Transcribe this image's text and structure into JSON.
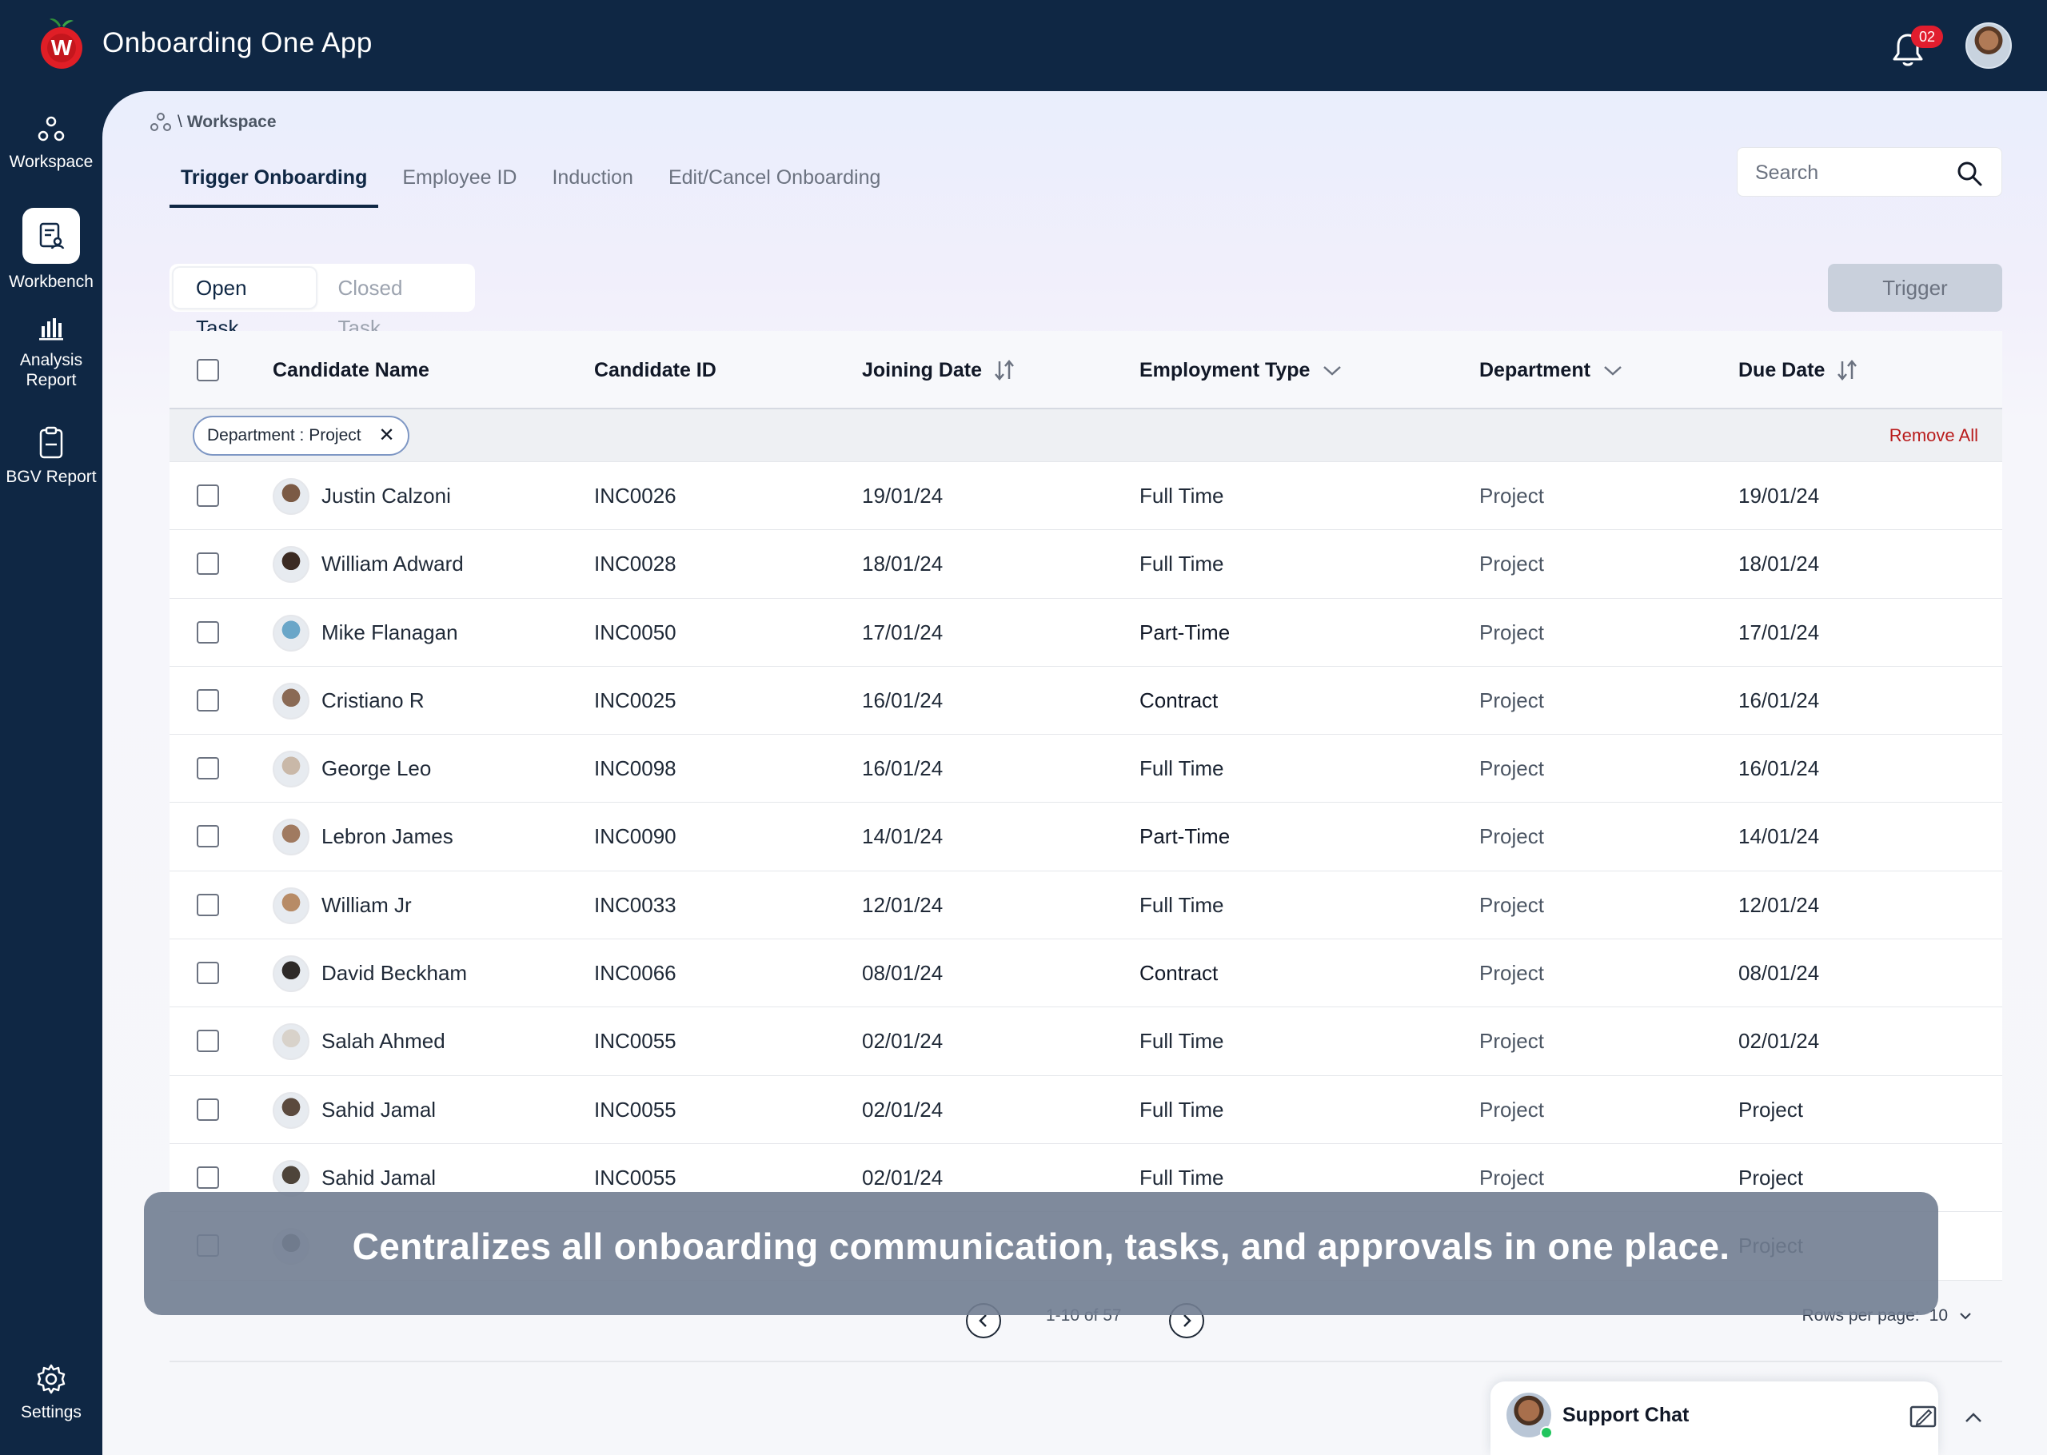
{
  "header": {
    "app_title": "Onboarding One App",
    "notification_count": "02",
    "logo_letter": "W"
  },
  "sidebar": {
    "items": [
      {
        "label": "Workspace",
        "icon": "workspace-icon",
        "active": false
      },
      {
        "label": "Workbench",
        "icon": "workbench-icon",
        "active": true
      },
      {
        "label": "Analysis Report",
        "icon": "bar-chart-icon",
        "active": false
      },
      {
        "label": "BGV Report",
        "icon": "clipboard-icon",
        "active": false
      }
    ],
    "settings_label": "Settings"
  },
  "breadcrumb": {
    "sep": "\\",
    "current": "Workspace"
  },
  "tabs": [
    {
      "label": "Trigger Onboarding",
      "active": true
    },
    {
      "label": "Employee ID",
      "active": false
    },
    {
      "label": "Induction",
      "active": false
    },
    {
      "label": "Edit/Cancel Onboarding",
      "active": false
    }
  ],
  "search": {
    "placeholder": "Search",
    "value": ""
  },
  "task_toggle": {
    "open": "Open Task",
    "closed": "Closed Task",
    "selected": "Open Task"
  },
  "trigger_button": "Trigger",
  "table": {
    "columns": [
      "Candidate Name",
      "Candidate ID",
      "Joining Date",
      "Employment Type",
      "Department",
      "Due Date"
    ],
    "filter_chip": "Department : Project",
    "remove_all": "Remove All",
    "rows": [
      {
        "name": "Justin Calzoni",
        "id": "INC0026",
        "joining": "19/01/24",
        "type": "Full Time",
        "dept": "Project",
        "due": "19/01/24"
      },
      {
        "name": "William Adward",
        "id": "INC0028",
        "joining": "18/01/24",
        "type": "Full Time",
        "dept": "Project",
        "due": "18/01/24"
      },
      {
        "name": "Mike Flanagan",
        "id": "INC0050",
        "joining": "17/01/24",
        "type": "Part-Time",
        "dept": "Project",
        "due": "17/01/24"
      },
      {
        "name": "Cristiano R",
        "id": "INC0025",
        "joining": "16/01/24",
        "type": "Contract",
        "dept": "Project",
        "due": "16/01/24"
      },
      {
        "name": "George Leo",
        "id": "INC0098",
        "joining": "16/01/24",
        "type": "Full Time",
        "dept": "Project",
        "due": "16/01/24"
      },
      {
        "name": "Lebron James",
        "id": "INC0090",
        "joining": "14/01/24",
        "type": "Part-Time",
        "dept": "Project",
        "due": "14/01/24"
      },
      {
        "name": "William Jr",
        "id": "INC0033",
        "joining": "12/01/24",
        "type": "Full Time",
        "dept": "Project",
        "due": "12/01/24"
      },
      {
        "name": "David Beckham",
        "id": "INC0066",
        "joining": "08/01/24",
        "type": "Contract",
        "dept": "Project",
        "due": "08/01/24"
      },
      {
        "name": "Salah Ahmed",
        "id": "INC0055",
        "joining": "02/01/24",
        "type": "Full Time",
        "dept": "Project",
        "due": "02/01/24"
      },
      {
        "name": "Sahid Jamal",
        "id": "INC0055",
        "joining": "02/01/24",
        "type": "Full Time",
        "dept": "Project",
        "due": "Project"
      },
      {
        "name": "Sahid Jamal",
        "id": "INC0055",
        "joining": "02/01/24",
        "type": "Full Time",
        "dept": "Project",
        "due": "Project"
      },
      {
        "name": "",
        "id": "",
        "joining": "",
        "type": "",
        "dept": "",
        "due": "Project"
      }
    ]
  },
  "pagination": {
    "range": "1-10 of 57",
    "rows_per_page_label": "Rows per page:",
    "rows_per_page": "10"
  },
  "caption": "Centralizes all onboarding communication, tasks, and approvals in one place.",
  "support_chat": {
    "label": "Support Chat"
  },
  "colors": {
    "navy": "#0f2744",
    "danger": "#b91c1c",
    "badge": "#e11d2e",
    "online": "#22c55e"
  }
}
